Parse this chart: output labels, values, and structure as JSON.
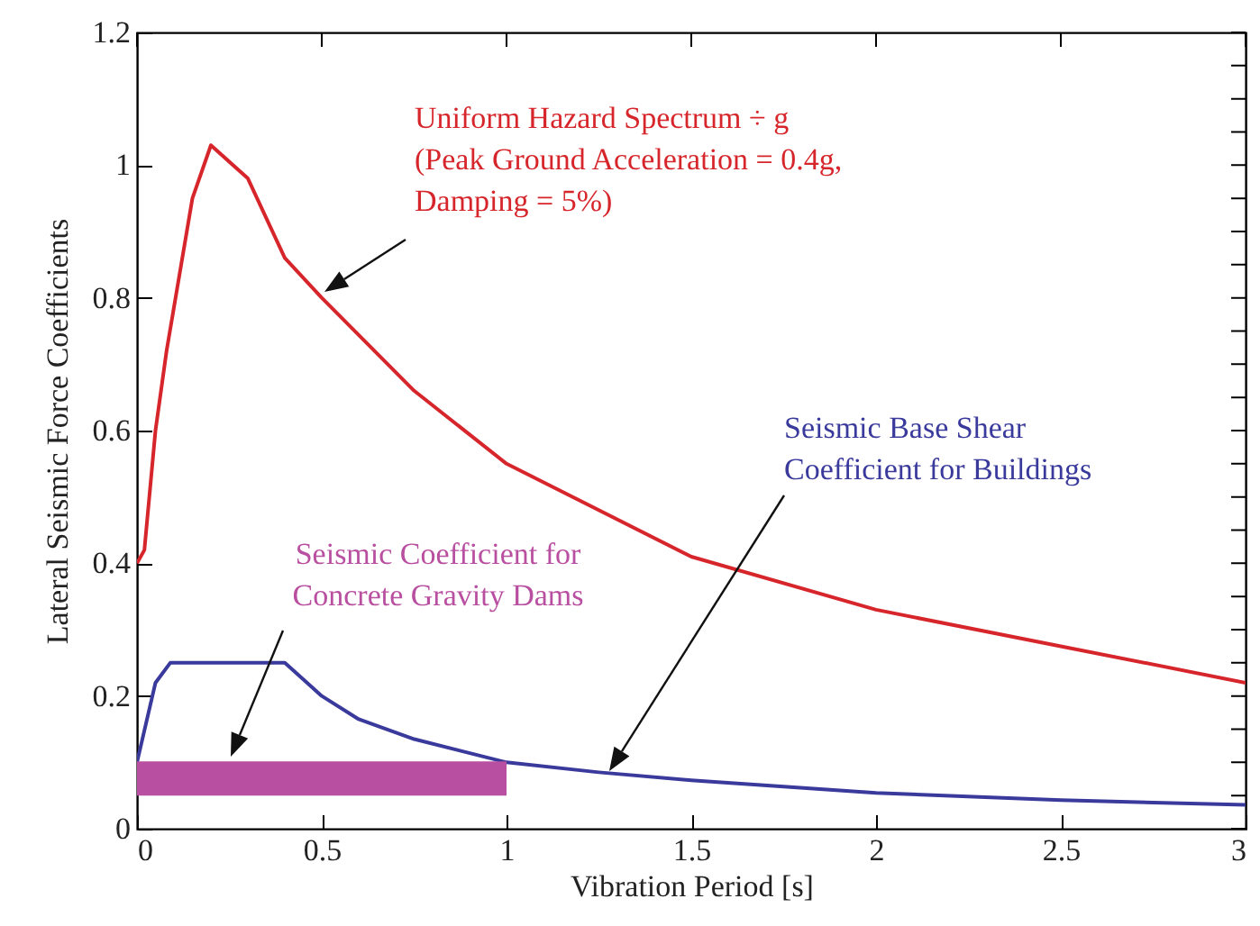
{
  "chart_data": {
    "type": "line",
    "xlabel": "Vibration Period [s]",
    "ylabel": "Lateral Seismic Force Coefficients",
    "xlim": [
      0,
      3
    ],
    "xticks": [
      0,
      0.5,
      1,
      1.5,
      2,
      2.5,
      3
    ],
    "ylim": [
      0,
      1.2
    ],
    "yticks": [
      0,
      {
        "value": 0.05,
        "label": null
      },
      0.2,
      {
        "value": 0.1,
        "label": null
      },
      {
        "value": 0.15,
        "label": null
      },
      {
        "value": 0.25,
        "label": null
      },
      {
        "value": 0.3,
        "label": null
      },
      {
        "value": 0.35,
        "label": null
      },
      0.4,
      {
        "value": 0.45,
        "label": null
      },
      {
        "value": 0.5,
        "label": null
      },
      {
        "value": 0.55,
        "label": null
      },
      0.6,
      {
        "value": 0.65,
        "label": null
      },
      {
        "value": 0.7,
        "label": null
      },
      {
        "value": 0.75,
        "label": null
      },
      0.8,
      {
        "value": 0.85,
        "label": null
      },
      {
        "value": 0.9,
        "label": null
      },
      {
        "value": 0.95,
        "label": null
      },
      1,
      {
        "value": 1.05,
        "label": null
      },
      {
        "value": 1.1,
        "label": null
      },
      {
        "value": 1.15,
        "label": null
      },
      1.2
    ],
    "series": [
      {
        "color": "#d7262b",
        "x": [
          0,
          0.02,
          0.05,
          0.08,
          0.15,
          0.2,
          0.3,
          0.4,
          0.5,
          0.75,
          1,
          1.5,
          2,
          2.5,
          3
        ],
        "values": [
          0.4,
          0.42,
          0.6,
          0.72,
          0.95,
          1.03,
          0.98,
          0.86,
          0.8,
          0.66,
          0.55,
          0.41,
          0.33,
          0.275,
          0.22
        ]
      },
      {
        "color": "#3a3a9c",
        "x": [
          0,
          0.05,
          0.09,
          0.4,
          0.5,
          0.6,
          0.75,
          1,
          1.25,
          1.5,
          2,
          2.5,
          3
        ],
        "values": [
          0.1,
          0.22,
          0.25,
          0.25,
          0.2,
          0.165,
          0.135,
          0.1,
          0.085,
          0.073,
          0.054,
          0.043,
          0.036
        ]
      },
      {
        "color": "#b94fa0",
        "x": [
          0,
          1
        ],
        "values": [
          0.1,
          0.1
        ],
        "lower": [
          0.05,
          0.05
        ],
        "upper": [
          0.1,
          0.1
        ]
      }
    ],
    "annotations": [
      "Uniform Hazard Spectrum ÷ g\n(Peak Ground Acceleration = 0.4g,\nDamping = 5%)",
      "Seismic Base Shear\nCoefficient for Buildings",
      "Seismic Coefficient for\nConcrete Gravity Dams"
    ]
  }
}
